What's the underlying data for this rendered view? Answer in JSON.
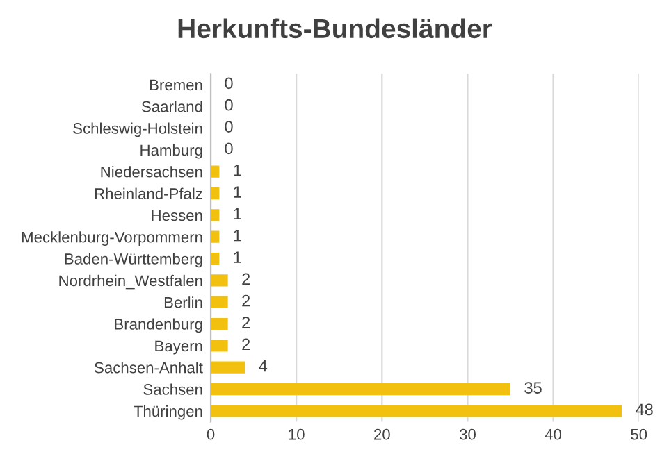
{
  "chart_data": {
    "type": "bar",
    "orientation": "horizontal",
    "title": "Herkunfts-Bundesländer",
    "categories": [
      "Bremen",
      "Saarland",
      "Schleswig-Holstein",
      "Hamburg",
      "Niedersachsen",
      "Rheinland-Pfalz",
      "Hessen",
      "Mecklenburg-Vorpommern",
      "Baden-Württemberg",
      "Nordrhein_Westfalen",
      "Berlin",
      "Brandenburg",
      "Bayern",
      "Sachsen-Anhalt",
      "Sachsen",
      "Thüringen"
    ],
    "values": [
      0,
      0,
      0,
      0,
      1,
      1,
      1,
      1,
      1,
      2,
      2,
      2,
      2,
      4,
      35,
      48
    ],
    "color": "#f2c10f",
    "xlim": [
      0,
      50
    ],
    "xticks": [
      0,
      10,
      20,
      30,
      40,
      50
    ],
    "grid": "x",
    "data_labels": true
  }
}
